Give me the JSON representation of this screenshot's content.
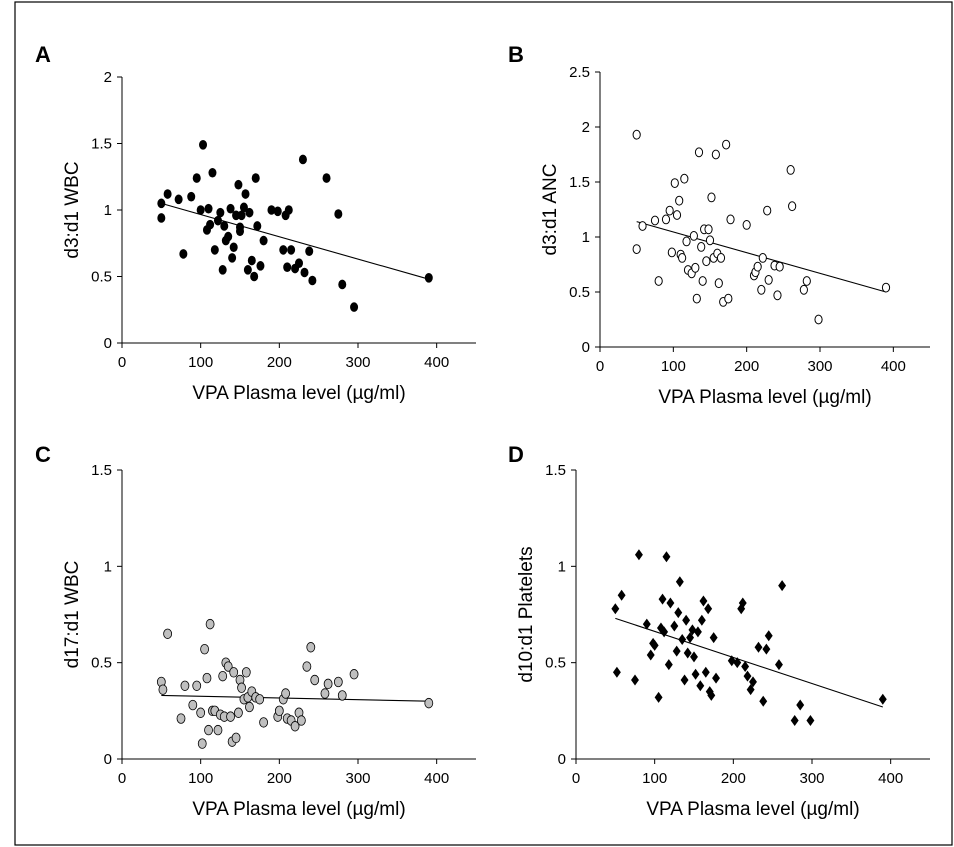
{
  "chart_data": [
    {
      "panel": "A",
      "type": "scatter",
      "marker": "filled-circle",
      "marker_color": "#000000",
      "xlabel": "VPA Plasma level (µg/ml)",
      "ylabel": "d3:d1 WBC",
      "xlim": [
        0,
        450
      ],
      "ylim": [
        0,
        2
      ],
      "xticks": [
        "0",
        "100",
        "200",
        "300",
        "400"
      ],
      "yticks": [
        "0",
        "0.5",
        "1",
        "1.5",
        "2"
      ],
      "x_tick_values": [
        0,
        100,
        200,
        300,
        400
      ],
      "y_tick_values": [
        0,
        0.5,
        1,
        1.5,
        2
      ],
      "trendline": [
        [
          50,
          1.05
        ],
        [
          390,
          0.48
        ]
      ],
      "points": [
        [
          50,
          1.05
        ],
        [
          50,
          0.94
        ],
        [
          58,
          1.12
        ],
        [
          72,
          1.08
        ],
        [
          78,
          0.67
        ],
        [
          88,
          1.1
        ],
        [
          95,
          1.24
        ],
        [
          100,
          1.0
        ],
        [
          103,
          1.49
        ],
        [
          108,
          0.85
        ],
        [
          110,
          1.01
        ],
        [
          112,
          0.89
        ],
        [
          115,
          1.28
        ],
        [
          118,
          0.7
        ],
        [
          122,
          0.92
        ],
        [
          125,
          0.98
        ],
        [
          128,
          0.55
        ],
        [
          130,
          0.88
        ],
        [
          132,
          0.77
        ],
        [
          135,
          0.8
        ],
        [
          138,
          1.01
        ],
        [
          140,
          0.64
        ],
        [
          142,
          0.72
        ],
        [
          145,
          0.96
        ],
        [
          148,
          1.19
        ],
        [
          150,
          0.87
        ],
        [
          150,
          0.84
        ],
        [
          152,
          0.96
        ],
        [
          155,
          1.02
        ],
        [
          157,
          1.12
        ],
        [
          160,
          0.55
        ],
        [
          162,
          0.98
        ],
        [
          165,
          0.62
        ],
        [
          168,
          0.5
        ],
        [
          170,
          1.24
        ],
        [
          172,
          0.88
        ],
        [
          176,
          0.58
        ],
        [
          180,
          0.77
        ],
        [
          190,
          1.0
        ],
        [
          198,
          0.99
        ],
        [
          205,
          0.7
        ],
        [
          208,
          0.96
        ],
        [
          210,
          0.57
        ],
        [
          212,
          1.0
        ],
        [
          215,
          0.7
        ],
        [
          220,
          0.56
        ],
        [
          225,
          0.6
        ],
        [
          230,
          1.38
        ],
        [
          232,
          0.53
        ],
        [
          238,
          0.69
        ],
        [
          242,
          0.47
        ],
        [
          260,
          1.24
        ],
        [
          275,
          0.97
        ],
        [
          280,
          0.44
        ],
        [
          295,
          0.27
        ],
        [
          390,
          0.49
        ]
      ]
    },
    {
      "panel": "B",
      "type": "scatter",
      "marker": "open-circle",
      "marker_color": "#000000",
      "xlabel": "VPA Plasma level (µg/ml)",
      "ylabel": "d3:d1 ANC",
      "xlim": [
        0,
        450
      ],
      "ylim": [
        0,
        2.5
      ],
      "xticks": [
        "0",
        "100",
        "200",
        "300",
        "400"
      ],
      "yticks": [
        "0",
        "0.5",
        "1",
        "1.5",
        "2",
        "2.5"
      ],
      "x_tick_values": [
        0,
        100,
        200,
        300,
        400
      ],
      "y_tick_values": [
        0,
        0.5,
        1,
        1.5,
        2,
        2.5
      ],
      "trendline": [
        [
          50,
          1.14
        ],
        [
          390,
          0.5
        ]
      ],
      "points": [
        [
          50,
          1.93
        ],
        [
          50,
          0.89
        ],
        [
          58,
          1.1
        ],
        [
          75,
          1.15
        ],
        [
          80,
          0.6
        ],
        [
          90,
          1.16
        ],
        [
          95,
          1.24
        ],
        [
          98,
          0.86
        ],
        [
          102,
          1.49
        ],
        [
          105,
          1.2
        ],
        [
          108,
          1.33
        ],
        [
          110,
          0.84
        ],
        [
          112,
          0.81
        ],
        [
          115,
          1.53
        ],
        [
          118,
          0.96
        ],
        [
          120,
          0.7
        ],
        [
          125,
          0.67
        ],
        [
          128,
          1.01
        ],
        [
          130,
          0.72
        ],
        [
          132,
          0.44
        ],
        [
          135,
          1.77
        ],
        [
          138,
          0.91
        ],
        [
          140,
          0.6
        ],
        [
          142,
          1.07
        ],
        [
          145,
          0.78
        ],
        [
          148,
          1.07
        ],
        [
          150,
          0.97
        ],
        [
          152,
          1.36
        ],
        [
          155,
          0.81
        ],
        [
          158,
          1.75
        ],
        [
          160,
          0.85
        ],
        [
          162,
          0.58
        ],
        [
          165,
          0.81
        ],
        [
          168,
          0.41
        ],
        [
          172,
          1.84
        ],
        [
          175,
          0.44
        ],
        [
          178,
          1.16
        ],
        [
          200,
          1.11
        ],
        [
          210,
          0.65
        ],
        [
          212,
          0.68
        ],
        [
          215,
          0.73
        ],
        [
          220,
          0.52
        ],
        [
          222,
          0.81
        ],
        [
          228,
          1.24
        ],
        [
          230,
          0.61
        ],
        [
          238,
          0.74
        ],
        [
          242,
          0.47
        ],
        [
          245,
          0.73
        ],
        [
          260,
          1.61
        ],
        [
          262,
          1.28
        ],
        [
          278,
          0.52
        ],
        [
          282,
          0.6
        ],
        [
          298,
          0.25
        ],
        [
          390,
          0.54
        ]
      ]
    },
    {
      "panel": "C",
      "type": "scatter",
      "marker": "gray-circle",
      "marker_color": "#bfbfbf",
      "xlabel": "VPA Plasma level (µg/ml)",
      "ylabel": "d17:d1 WBC",
      "xlim": [
        0,
        450
      ],
      "ylim": [
        0,
        1.5
      ],
      "xticks": [
        "0",
        "100",
        "200",
        "300",
        "400"
      ],
      "yticks": [
        "0",
        "0.5",
        "1",
        "1.5"
      ],
      "x_tick_values": [
        0,
        100,
        200,
        300,
        400
      ],
      "y_tick_values": [
        0,
        0.5,
        1,
        1.5
      ],
      "trendline": [
        [
          50,
          0.33
        ],
        [
          390,
          0.3
        ]
      ],
      "points": [
        [
          50,
          0.4
        ],
        [
          52,
          0.36
        ],
        [
          58,
          0.65
        ],
        [
          75,
          0.21
        ],
        [
          80,
          0.38
        ],
        [
          90,
          0.28
        ],
        [
          95,
          0.38
        ],
        [
          100,
          0.24
        ],
        [
          102,
          0.08
        ],
        [
          105,
          0.57
        ],
        [
          108,
          0.42
        ],
        [
          110,
          0.15
        ],
        [
          112,
          0.7
        ],
        [
          115,
          0.25
        ],
        [
          118,
          0.25
        ],
        [
          122,
          0.15
        ],
        [
          125,
          0.23
        ],
        [
          128,
          0.43
        ],
        [
          130,
          0.22
        ],
        [
          132,
          0.5
        ],
        [
          135,
          0.48
        ],
        [
          138,
          0.22
        ],
        [
          140,
          0.09
        ],
        [
          142,
          0.45
        ],
        [
          145,
          0.11
        ],
        [
          148,
          0.24
        ],
        [
          150,
          0.41
        ],
        [
          152,
          0.37
        ],
        [
          155,
          0.31
        ],
        [
          158,
          0.45
        ],
        [
          160,
          0.32
        ],
        [
          162,
          0.27
        ],
        [
          165,
          0.35
        ],
        [
          170,
          0.32
        ],
        [
          175,
          0.31
        ],
        [
          180,
          0.19
        ],
        [
          198,
          0.22
        ],
        [
          200,
          0.25
        ],
        [
          205,
          0.31
        ],
        [
          208,
          0.34
        ],
        [
          210,
          0.21
        ],
        [
          215,
          0.2
        ],
        [
          220,
          0.17
        ],
        [
          225,
          0.24
        ],
        [
          228,
          0.2
        ],
        [
          235,
          0.48
        ],
        [
          240,
          0.58
        ],
        [
          245,
          0.41
        ],
        [
          258,
          0.34
        ],
        [
          262,
          0.39
        ],
        [
          275,
          0.4
        ],
        [
          280,
          0.33
        ],
        [
          295,
          0.44
        ],
        [
          390,
          0.29
        ]
      ]
    },
    {
      "panel": "D",
      "type": "scatter",
      "marker": "filled-diamond",
      "marker_color": "#000000",
      "xlabel": "VPA Plasma level (µg/ml)",
      "ylabel": "d10:d1 Platelets",
      "xlim": [
        0,
        450
      ],
      "ylim": [
        0,
        1.5
      ],
      "xticks": [
        "0",
        "100",
        "200",
        "300",
        "400"
      ],
      "yticks": [
        "0",
        "0.5",
        "1",
        "1.5"
      ],
      "x_tick_values": [
        0,
        100,
        200,
        300,
        400
      ],
      "y_tick_values": [
        0,
        0.5,
        1,
        1.5
      ],
      "trendline": [
        [
          50,
          0.73
        ],
        [
          390,
          0.27
        ]
      ],
      "points": [
        [
          50,
          0.78
        ],
        [
          52,
          0.45
        ],
        [
          58,
          0.85
        ],
        [
          75,
          0.41
        ],
        [
          80,
          1.06
        ],
        [
          90,
          0.7
        ],
        [
          95,
          0.54
        ],
        [
          98,
          0.6
        ],
        [
          100,
          0.59
        ],
        [
          105,
          0.32
        ],
        [
          108,
          0.68
        ],
        [
          110,
          0.83
        ],
        [
          112,
          0.66
        ],
        [
          115,
          1.05
        ],
        [
          118,
          0.49
        ],
        [
          120,
          0.81
        ],
        [
          125,
          0.69
        ],
        [
          128,
          0.56
        ],
        [
          130,
          0.76
        ],
        [
          132,
          0.92
        ],
        [
          135,
          0.62
        ],
        [
          138,
          0.41
        ],
        [
          140,
          0.72
        ],
        [
          142,
          0.55
        ],
        [
          145,
          0.63
        ],
        [
          148,
          0.67
        ],
        [
          150,
          0.53
        ],
        [
          152,
          0.44
        ],
        [
          155,
          0.66
        ],
        [
          158,
          0.38
        ],
        [
          160,
          0.72
        ],
        [
          162,
          0.82
        ],
        [
          165,
          0.45
        ],
        [
          168,
          0.78
        ],
        [
          170,
          0.35
        ],
        [
          172,
          0.33
        ],
        [
          175,
          0.63
        ],
        [
          178,
          0.42
        ],
        [
          198,
          0.51
        ],
        [
          205,
          0.5
        ],
        [
          210,
          0.78
        ],
        [
          212,
          0.81
        ],
        [
          215,
          0.48
        ],
        [
          218,
          0.43
        ],
        [
          222,
          0.36
        ],
        [
          225,
          0.4
        ],
        [
          232,
          0.58
        ],
        [
          238,
          0.3
        ],
        [
          242,
          0.57
        ],
        [
          245,
          0.64
        ],
        [
          258,
          0.49
        ],
        [
          262,
          0.9
        ],
        [
          278,
          0.2
        ],
        [
          285,
          0.28
        ],
        [
          298,
          0.2
        ],
        [
          390,
          0.31
        ]
      ]
    }
  ]
}
